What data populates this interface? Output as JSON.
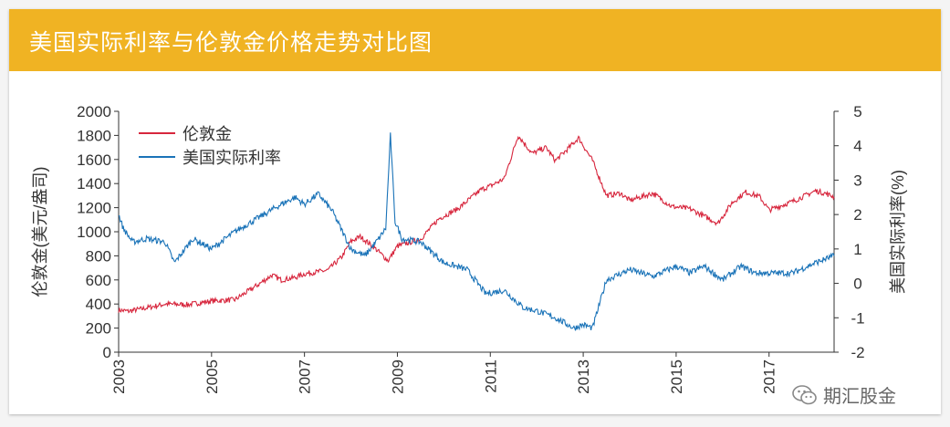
{
  "header": {
    "title": "美国实际利率与伦敦金价格走势对比图"
  },
  "watermark": {
    "text": "期汇股金"
  },
  "colors": {
    "header": "#f0b323",
    "gold": "#d7263d",
    "rate": "#1a73b8",
    "axis": "#333333"
  },
  "chart_data": {
    "type": "line",
    "title": "美国实际利率与伦敦金价格走势对比图",
    "xlabel": "",
    "ylabel_left": "伦敦金(美元/盎司)",
    "ylabel_right": "美国实际利率(%)",
    "xlim": [
      2003,
      2018.4
    ],
    "ylim_left": [
      0,
      2000
    ],
    "ylim_right": [
      -2,
      5
    ],
    "x_ticks": [
      "2003",
      "2005",
      "2007",
      "2009",
      "2011",
      "2013",
      "2015",
      "2017"
    ],
    "y_left_ticks": [
      "0",
      "200",
      "400",
      "600",
      "800",
      "1000",
      "1200",
      "1400",
      "1600",
      "1800",
      "2000"
    ],
    "y_right_ticks": [
      "-2",
      "-1",
      "0",
      "1",
      "2",
      "3",
      "4",
      "5"
    ],
    "legend": [
      "伦敦金",
      "美国实际利率"
    ],
    "legend_position": "top-left",
    "series": [
      {
        "name": "伦敦金",
        "axis": "left",
        "x": [
          2003.0,
          2003.2,
          2003.5,
          2004.0,
          2004.5,
          2005.0,
          2005.5,
          2006.0,
          2006.3,
          2006.5,
          2006.8,
          2007.0,
          2007.5,
          2007.8,
          2008.0,
          2008.2,
          2008.5,
          2008.8,
          2009.0,
          2009.5,
          2009.9,
          2010.3,
          2010.8,
          2011.0,
          2011.3,
          2011.6,
          2011.7,
          2011.9,
          2012.2,
          2012.4,
          2012.7,
          2012.9,
          2013.2,
          2013.5,
          2013.8,
          2014.0,
          2014.5,
          2014.9,
          2015.3,
          2015.6,
          2015.9,
          2016.2,
          2016.5,
          2016.8,
          2017.0,
          2017.5,
          2018.0,
          2018.2,
          2018.4
        ],
        "values": [
          350,
          340,
          360,
          400,
          395,
          425,
          435,
          560,
          640,
          600,
          620,
          650,
          680,
          790,
          920,
          960,
          870,
          760,
          880,
          940,
          1110,
          1190,
          1350,
          1380,
          1440,
          1800,
          1750,
          1650,
          1700,
          1590,
          1700,
          1780,
          1590,
          1300,
          1320,
          1260,
          1320,
          1210,
          1190,
          1130,
          1070,
          1240,
          1330,
          1290,
          1180,
          1250,
          1340,
          1320,
          1290
        ]
      },
      {
        "name": "美国实际利率",
        "axis": "right",
        "x": [
          2003.0,
          2003.1,
          2003.3,
          2003.6,
          2004.0,
          2004.2,
          2004.6,
          2005.0,
          2005.5,
          2006.0,
          2006.5,
          2006.8,
          2007.0,
          2007.3,
          2007.6,
          2008.0,
          2008.3,
          2008.6,
          2008.75,
          2008.85,
          2008.95,
          2009.1,
          2009.5,
          2010.0,
          2010.5,
          2010.9,
          2011.3,
          2011.7,
          2012.0,
          2012.4,
          2012.8,
          2013.0,
          2013.2,
          2013.5,
          2014.0,
          2014.5,
          2015.0,
          2015.3,
          2015.6,
          2016.0,
          2016.4,
          2016.7,
          2017.0,
          2017.5,
          2018.0,
          2018.4
        ],
        "values": [
          2.0,
          1.6,
          1.2,
          1.3,
          1.2,
          0.6,
          1.3,
          1.0,
          1.5,
          1.9,
          2.3,
          2.5,
          2.3,
          2.6,
          2.1,
          1.0,
          0.8,
          1.3,
          1.6,
          4.3,
          1.8,
          1.3,
          1.2,
          0.6,
          0.4,
          -0.3,
          -0.2,
          -0.7,
          -0.8,
          -1.0,
          -1.3,
          -1.2,
          -1.3,
          0.1,
          0.4,
          0.2,
          0.5,
          0.3,
          0.5,
          0.1,
          0.5,
          0.3,
          0.3,
          0.3,
          0.6,
          0.8
        ]
      }
    ]
  }
}
